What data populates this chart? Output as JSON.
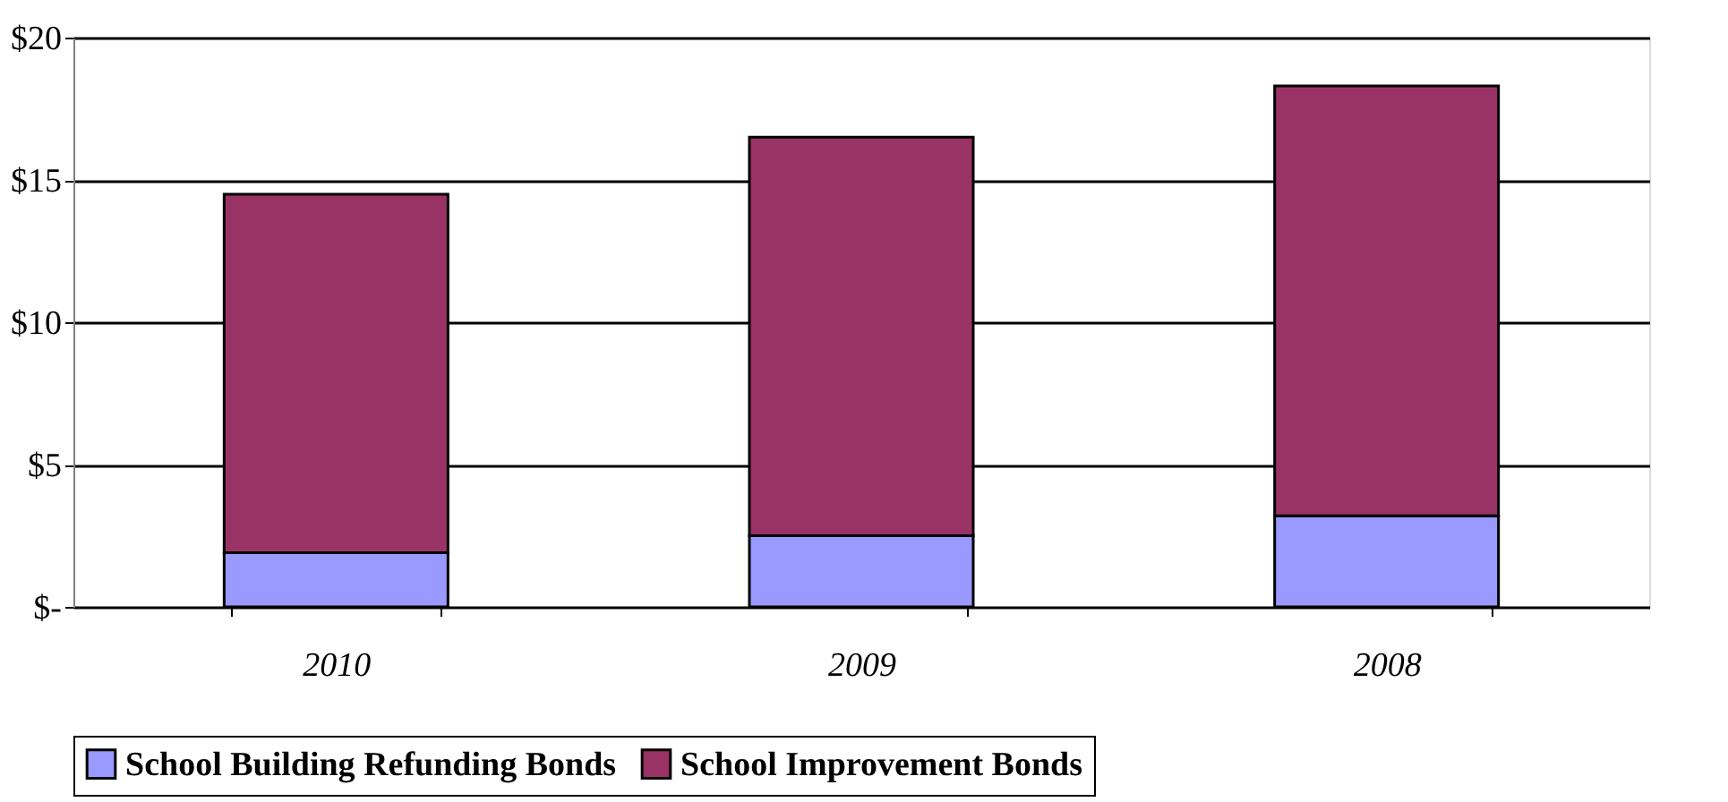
{
  "chart_data": {
    "type": "bar",
    "stacked": true,
    "categories": [
      "2010",
      "2009",
      "2008"
    ],
    "series": [
      {
        "name": "School Building Refunding Bonds",
        "color": "#9999ff",
        "values": [
          1.9,
          2.5,
          3.2
        ]
      },
      {
        "name": "School Improvement Bonds",
        "color": "#993366",
        "values": [
          12.6,
          14.0,
          15.1
        ]
      }
    ],
    "ylim": [
      0,
      20
    ],
    "yticks": [
      {
        "value": 0,
        "label": "$-"
      },
      {
        "value": 5,
        "label": "$5"
      },
      {
        "value": 10,
        "label": "$10"
      },
      {
        "value": 15,
        "label": "$15"
      },
      {
        "value": 20,
        "label": "$20"
      }
    ],
    "grid": "y",
    "legend": "bottom"
  }
}
